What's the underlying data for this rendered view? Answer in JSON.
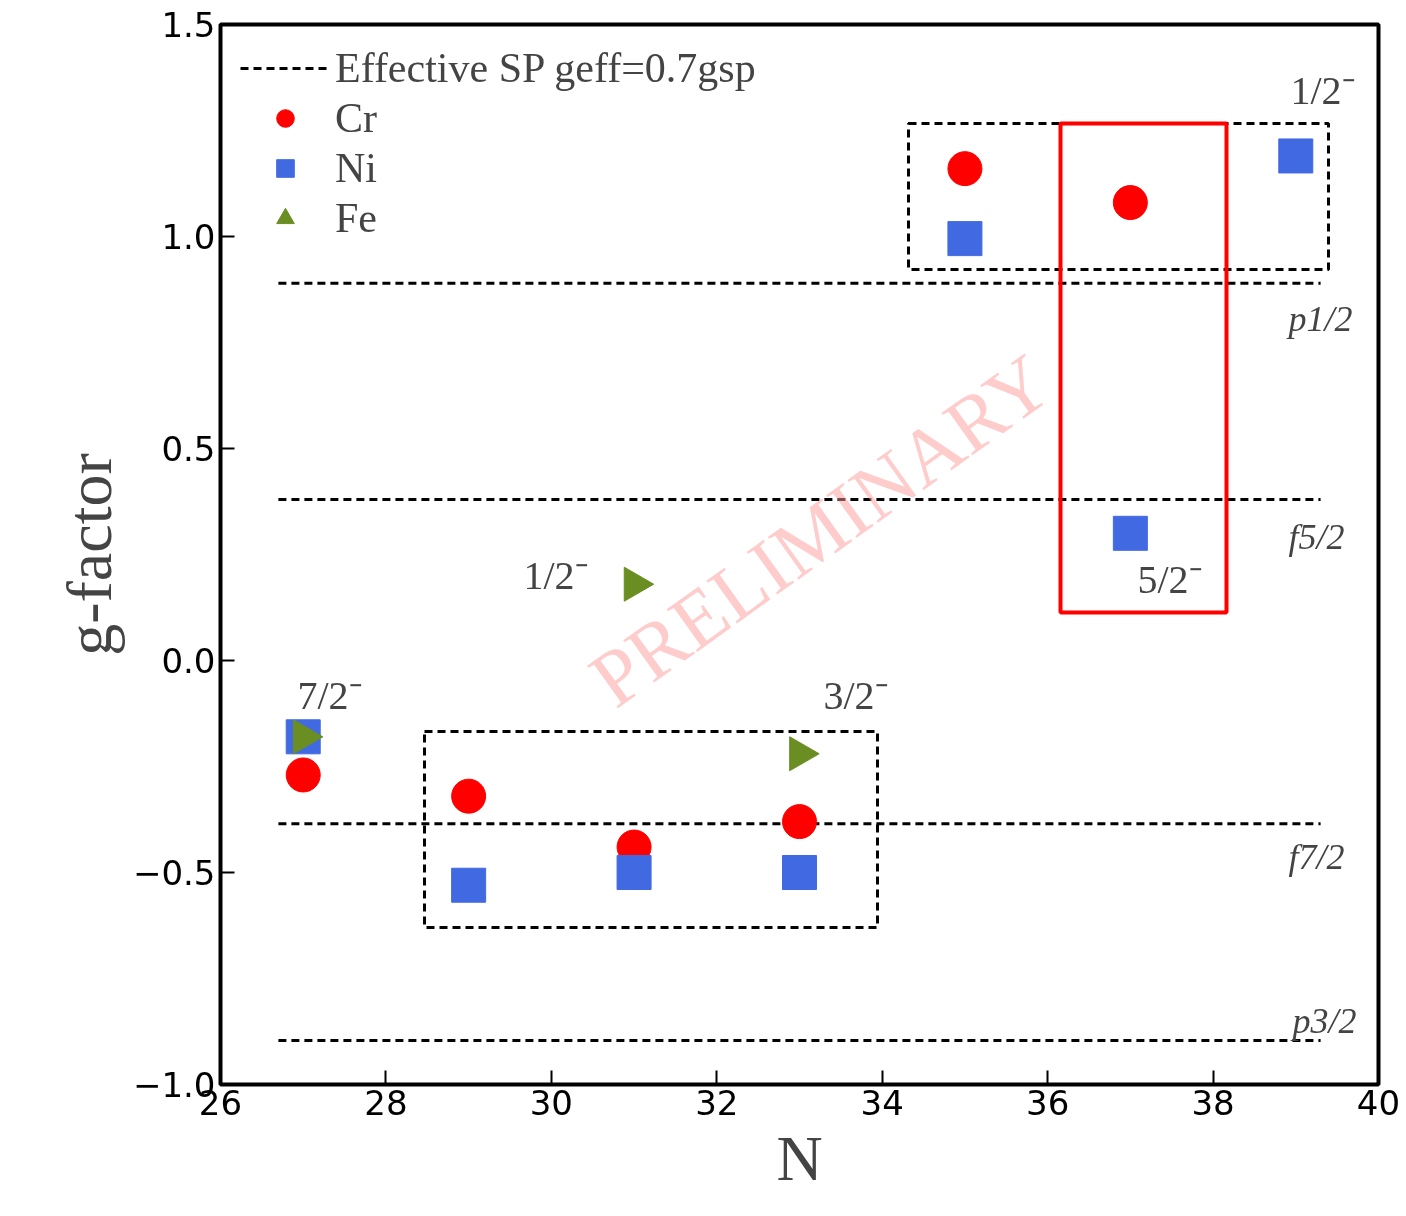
{
  "chart_data": {
    "type": "scatter",
    "xlabel": "N",
    "ylabel": "g-factor",
    "xlim": [
      26,
      40
    ],
    "ylim": [
      -1.0,
      1.5
    ],
    "xticks": [
      26,
      28,
      30,
      32,
      34,
      36,
      38,
      40
    ],
    "yticks": [
      {
        "value": -1.0,
        "label": "−1.0"
      },
      {
        "value": -0.5,
        "label": "−0.5"
      },
      {
        "value": 0.0,
        "label": "0.0"
      },
      {
        "value": 0.5,
        "label": "0.5"
      },
      {
        "value": 1.0,
        "label": "1.0"
      },
      {
        "value": 1.5,
        "label": "1.5"
      }
    ],
    "grid": false,
    "legend": "top left",
    "series": [
      {
        "name": "Effective SP geff=0.7gsp",
        "type": "line",
        "line_style": "dashed",
        "color": "#000000",
        "x": [
          26.7,
          39.3
        ],
        "values": [
          0.89,
          0.89
        ]
      },
      {
        "type": "line",
        "line_style": "dashed",
        "color": "#000000",
        "x": [
          26.7,
          39.3
        ],
        "values": [
          0.38,
          0.38
        ]
      },
      {
        "type": "line",
        "line_style": "dashed",
        "color": "#000000",
        "x": [
          26.7,
          39.3
        ],
        "values": [
          -0.385,
          -0.385
        ]
      },
      {
        "type": "line",
        "line_style": "dashed",
        "color": "#000000",
        "x": [
          26.7,
          39.3
        ],
        "values": [
          -0.896,
          -0.896
        ]
      },
      {
        "name": "Cr",
        "marker": "circle",
        "color": "#ff0000",
        "x": [
          27,
          29,
          31,
          33,
          35,
          37
        ],
        "values": [
          -0.27,
          -0.32,
          -0.44,
          -0.38,
          1.16,
          1.08
        ]
      },
      {
        "name": "Ni",
        "marker": "square",
        "color": "#4169e1",
        "x": [
          27,
          29,
          31,
          33,
          35,
          37,
          39
        ],
        "values": [
          -0.18,
          -0.53,
          -0.5,
          -0.5,
          0.995,
          0.3,
          1.19
        ]
      },
      {
        "name": "Fe",
        "marker": "triangle",
        "color": "#6b8e23",
        "x": [
          27,
          31,
          33
        ],
        "values": [
          -0.18,
          0.18,
          -0.22
        ]
      }
    ],
    "annotations": [
      "1/2⁻",
      "1/2⁻",
      "7/2⁻",
      "3/2⁻",
      "5/2⁻",
      "p1/2",
      "f5/2",
      "f7/2",
      "p3/2",
      "PRELIMINARY"
    ]
  }
}
